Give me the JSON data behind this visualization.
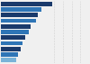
{
  "values": [
    17.5,
    13.8,
    12.5,
    12.0,
    10.2,
    9.5,
    8.3,
    7.5,
    6.8,
    6.0,
    5.2
  ],
  "bar_colors": [
    "#1a3a6b",
    "#2e75b6",
    "#1a3a6b",
    "#2e75b6",
    "#1a3a6b",
    "#2e75b6",
    "#1a3a6b",
    "#2e75b6",
    "#1a3a6b",
    "#2e75b6",
    "#7ab3d8"
  ],
  "background_color": "#f0f0f0",
  "plot_bg_color": "#f0f0f0",
  "bar_area_bg": "#ffffff",
  "xlim": [
    0,
    30
  ],
  "grid_color": "#c8c8c8",
  "n_bars": 11
}
